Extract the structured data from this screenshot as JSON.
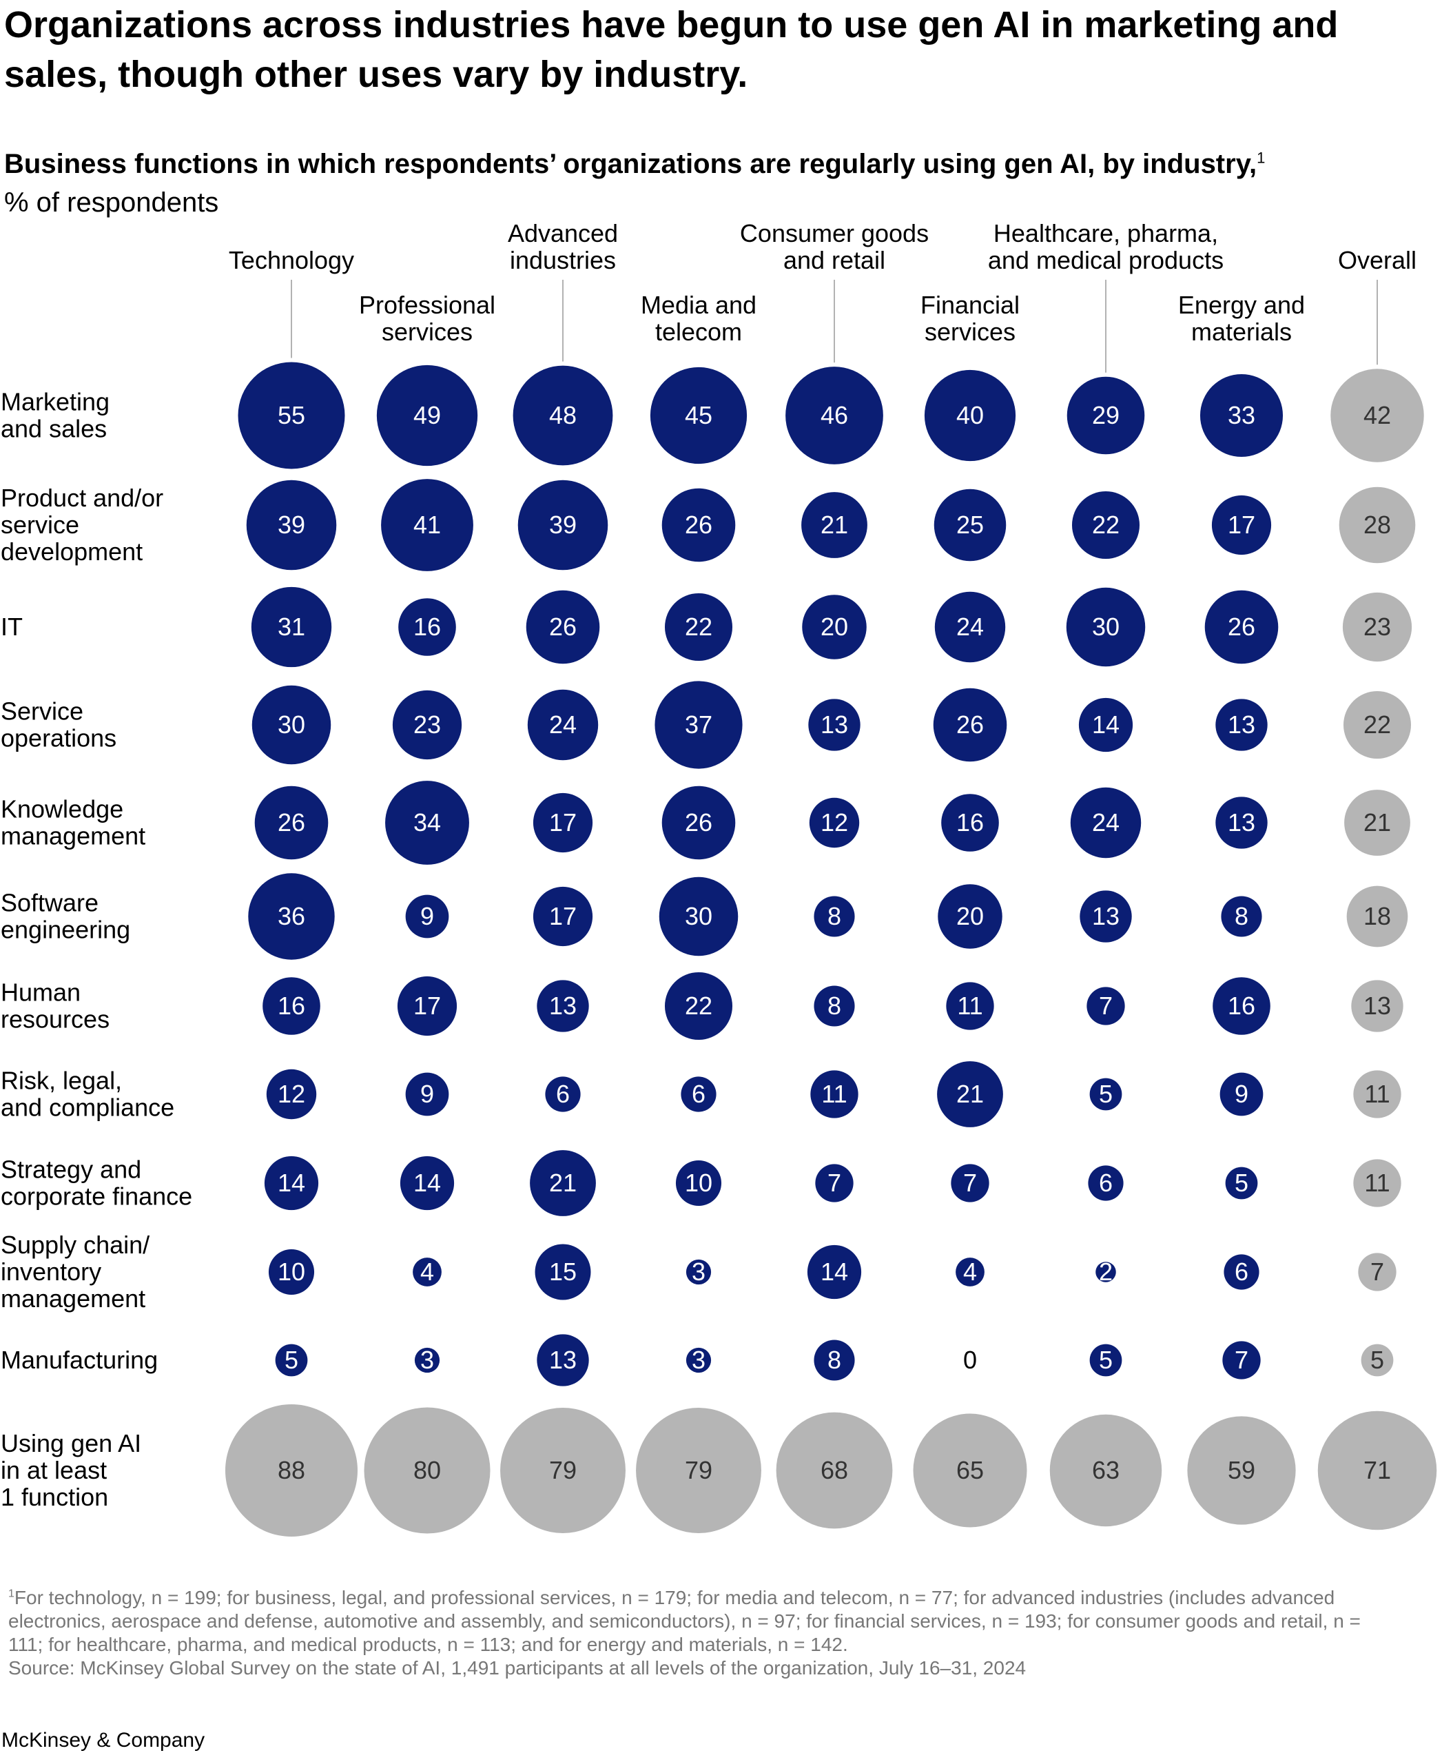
{
  "headline": "Organizations across industries have begun to use gen AI in marketing and sales, though other uses vary by industry.",
  "subtitle": "Business functions in which respondents’ organizations are regularly using gen AI, by industry,",
  "subtitle_note_marker": "1",
  "unit": "% of respondents",
  "colors": {
    "industry": "#0B1E74",
    "overall": "#B5B5B5",
    "zero": "#000000"
  },
  "chart_data": {
    "type": "bubble-matrix",
    "columns": [
      {
        "label": "Technology",
        "group": "industry"
      },
      {
        "label": "Professional services",
        "group": "industry"
      },
      {
        "label": "Advanced industries",
        "group": "industry"
      },
      {
        "label": "Media and telecom",
        "group": "industry"
      },
      {
        "label": "Consumer goods and retail",
        "group": "industry"
      },
      {
        "label": "Financial services",
        "group": "industry"
      },
      {
        "label": "Healthcare, pharma, and medical products",
        "group": "industry"
      },
      {
        "label": "Energy and materials",
        "group": "industry"
      },
      {
        "label": "Overall",
        "group": "overall"
      }
    ],
    "rows": [
      {
        "label": "Marketing and sales",
        "values": [
          55,
          49,
          48,
          45,
          46,
          40,
          29,
          33,
          42
        ]
      },
      {
        "label": "Product and/or service development",
        "values": [
          39,
          41,
          39,
          26,
          21,
          25,
          22,
          17,
          28
        ]
      },
      {
        "label": "IT",
        "values": [
          31,
          16,
          26,
          22,
          20,
          24,
          30,
          26,
          23
        ]
      },
      {
        "label": "Service operations",
        "values": [
          30,
          23,
          24,
          37,
          13,
          26,
          14,
          13,
          22
        ]
      },
      {
        "label": "Knowledge management",
        "values": [
          26,
          34,
          17,
          26,
          12,
          16,
          24,
          13,
          21
        ]
      },
      {
        "label": "Software engineering",
        "values": [
          36,
          9,
          17,
          30,
          8,
          20,
          13,
          8,
          18
        ]
      },
      {
        "label": "Human resources",
        "values": [
          16,
          17,
          13,
          22,
          8,
          11,
          7,
          16,
          13
        ]
      },
      {
        "label": "Risk, legal, and compliance",
        "values": [
          12,
          9,
          6,
          6,
          11,
          21,
          5,
          9,
          11
        ]
      },
      {
        "label": "Strategy and corporate finance",
        "values": [
          14,
          14,
          21,
          10,
          7,
          7,
          6,
          5,
          11
        ]
      },
      {
        "label": "Supply chain/ inventory management",
        "values": [
          10,
          4,
          15,
          3,
          14,
          4,
          2,
          6,
          7
        ]
      },
      {
        "label": "Manufacturing",
        "values": [
          5,
          3,
          13,
          3,
          8,
          0,
          5,
          7,
          5
        ]
      }
    ],
    "total_row": {
      "label": "Using gen AI in at least 1 function",
      "values": [
        88,
        80,
        79,
        79,
        68,
        65,
        63,
        59,
        71
      ]
    }
  },
  "footnote": {
    "marker": "1",
    "text": "For technology, n = 199; for business, legal, and professional services, n = 179; for media and telecom, n = 77; for advanced industries (includes advanced electronics, aerospace and defense, automotive and assembly, and semiconductors), n = 97; for financial services, n = 193; for consumer goods and retail, n = 111; for healthcare, pharma, and medical products, n = 113; and for energy and materials, n = 142.",
    "source": "Source: McKinsey Global Survey on the state of AI, 1,491 participants at all levels of the organization, July 16–31, 2024"
  },
  "brand": "McKinsey & Company"
}
